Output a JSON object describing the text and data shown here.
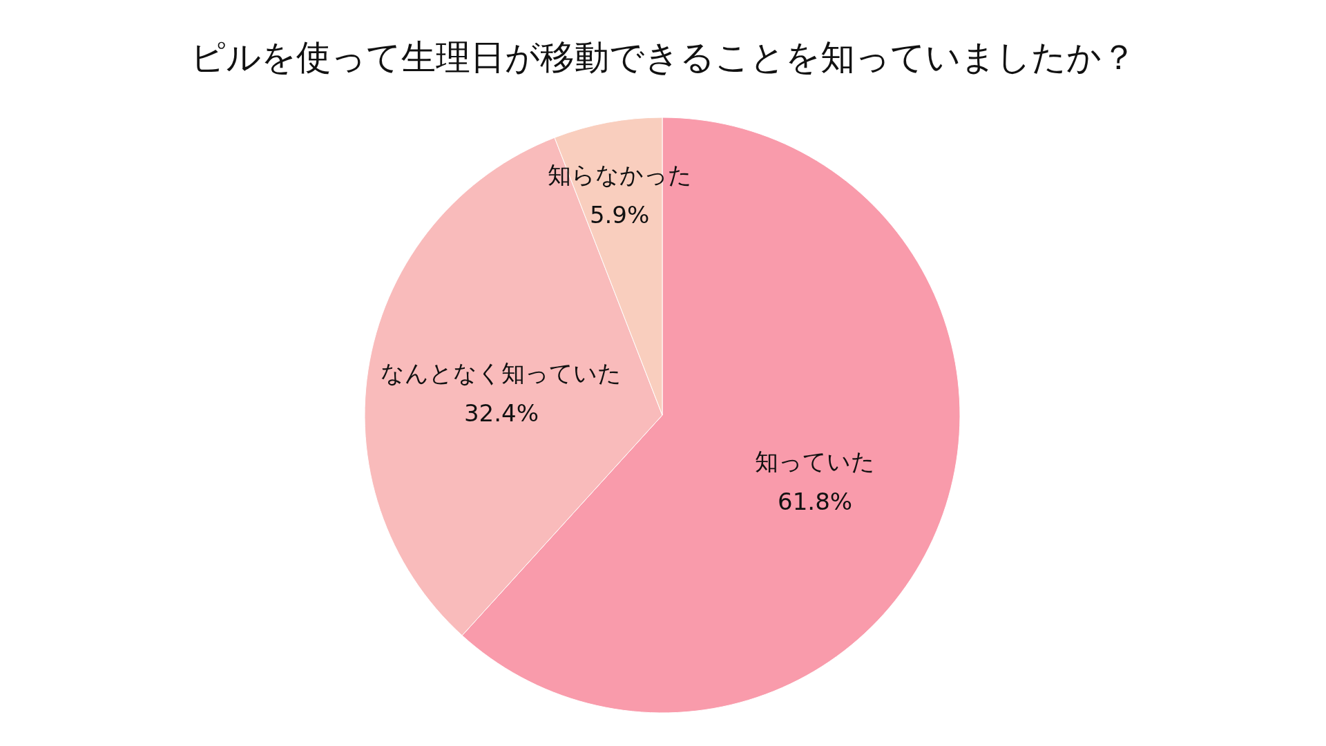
{
  "chart_data": {
    "type": "pie",
    "title": "ピルを使って生理日が移動できることを知っていましたか？",
    "categories": [
      "知っていた",
      "なんとなく知っていた",
      "知らなかった"
    ],
    "values": [
      61.8,
      32.4,
      5.9
    ],
    "colors": [
      "#f99bab",
      "#f9bbbb",
      "#f9cebe"
    ],
    "value_labels": [
      "61.8%",
      "32.4%",
      "5.9%"
    ]
  }
}
